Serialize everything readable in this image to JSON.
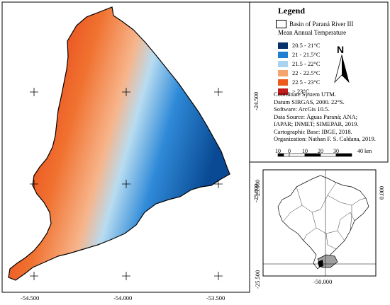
{
  "legend": {
    "title": "Legend",
    "basin_label": "Basin of Paraná River III",
    "temp_title": "Mean Annual Temperature",
    "classes": [
      {
        "label": "20.5 - 21°C",
        "color": "#08306b"
      },
      {
        "label": "21 - 21.5°C",
        "color": "#1f7fd0"
      },
      {
        "label": "21.5 - 22°C",
        "color": "#a9d3ee"
      },
      {
        "label": "22 - 22.5°C",
        "color": "#f5a46e"
      },
      {
        "label": "22.5 - 23°C",
        "color": "#ec5a1e"
      },
      {
        "label": "> 23°C",
        "color": "#c11b1b"
      }
    ]
  },
  "north_label": "N",
  "metadata": {
    "lines": [
      "Coordinate System UTM.",
      "Datum SIRGAS, 2000. 22°S.",
      "Software: ArcGis 10.5.",
      "Data Source: Águas Paraná; ANA;",
      "IAPAR; INMET; SIMEPAR, 2019.",
      "Cartographic Base: IBGE, 2018.",
      "Organization: Nathan F. S. Caldana, 2019."
    ]
  },
  "scale_bar": {
    "labels": [
      "10",
      "0",
      "10",
      "20",
      "30",
      "40 km"
    ]
  },
  "main_map": {
    "x_ticks": [
      "-54.500",
      "-54.000",
      "-53.500"
    ],
    "y_ticks": [
      "-24.500",
      "-25.000"
    ]
  },
  "inset_map": {
    "x_ticks": [
      "-50.000"
    ],
    "y_left_ticks": [
      "-25.000",
      "-25.500"
    ],
    "y_right_ticks": [
      "0.000"
    ]
  }
}
